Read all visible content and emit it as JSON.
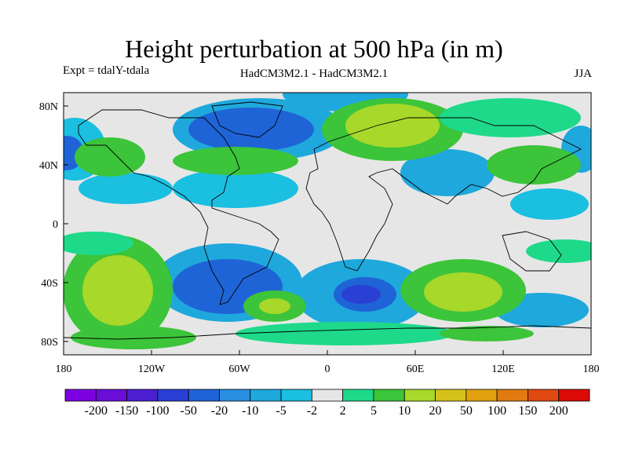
{
  "title": "Height perturbation at 500 hPa (in m)",
  "subtitle_left": "Expt = tdalY-tdala",
  "subtitle_center": "HadCM3M2.1 - HadCM3M2.1",
  "subtitle_right": "JJA",
  "lat_ticks": [
    "80N",
    "40N",
    "0",
    "40S",
    "80S"
  ],
  "lon_ticks": [
    "180",
    "120W",
    "60W",
    "0",
    "60E",
    "120E",
    "180"
  ],
  "colorbar": {
    "labels": [
      "-200",
      "-150",
      "-100",
      "-50",
      "-20",
      "-10",
      "-5",
      "-2",
      "2",
      "5",
      "10",
      "20",
      "50",
      "100",
      "150",
      "200"
    ],
    "colors": [
      "#7d00e0",
      "#6a0ed8",
      "#4b1fcf",
      "#2a3fd3",
      "#1f64d6",
      "#2a8ee0",
      "#1fa8dc",
      "#1bbfe0",
      "#e6e6e6",
      "#1ed98a",
      "#3cc43a",
      "#a8d82a",
      "#d4c21a",
      "#e0a010",
      "#e07a10",
      "#e04a10",
      "#dd0a0a"
    ]
  }
}
